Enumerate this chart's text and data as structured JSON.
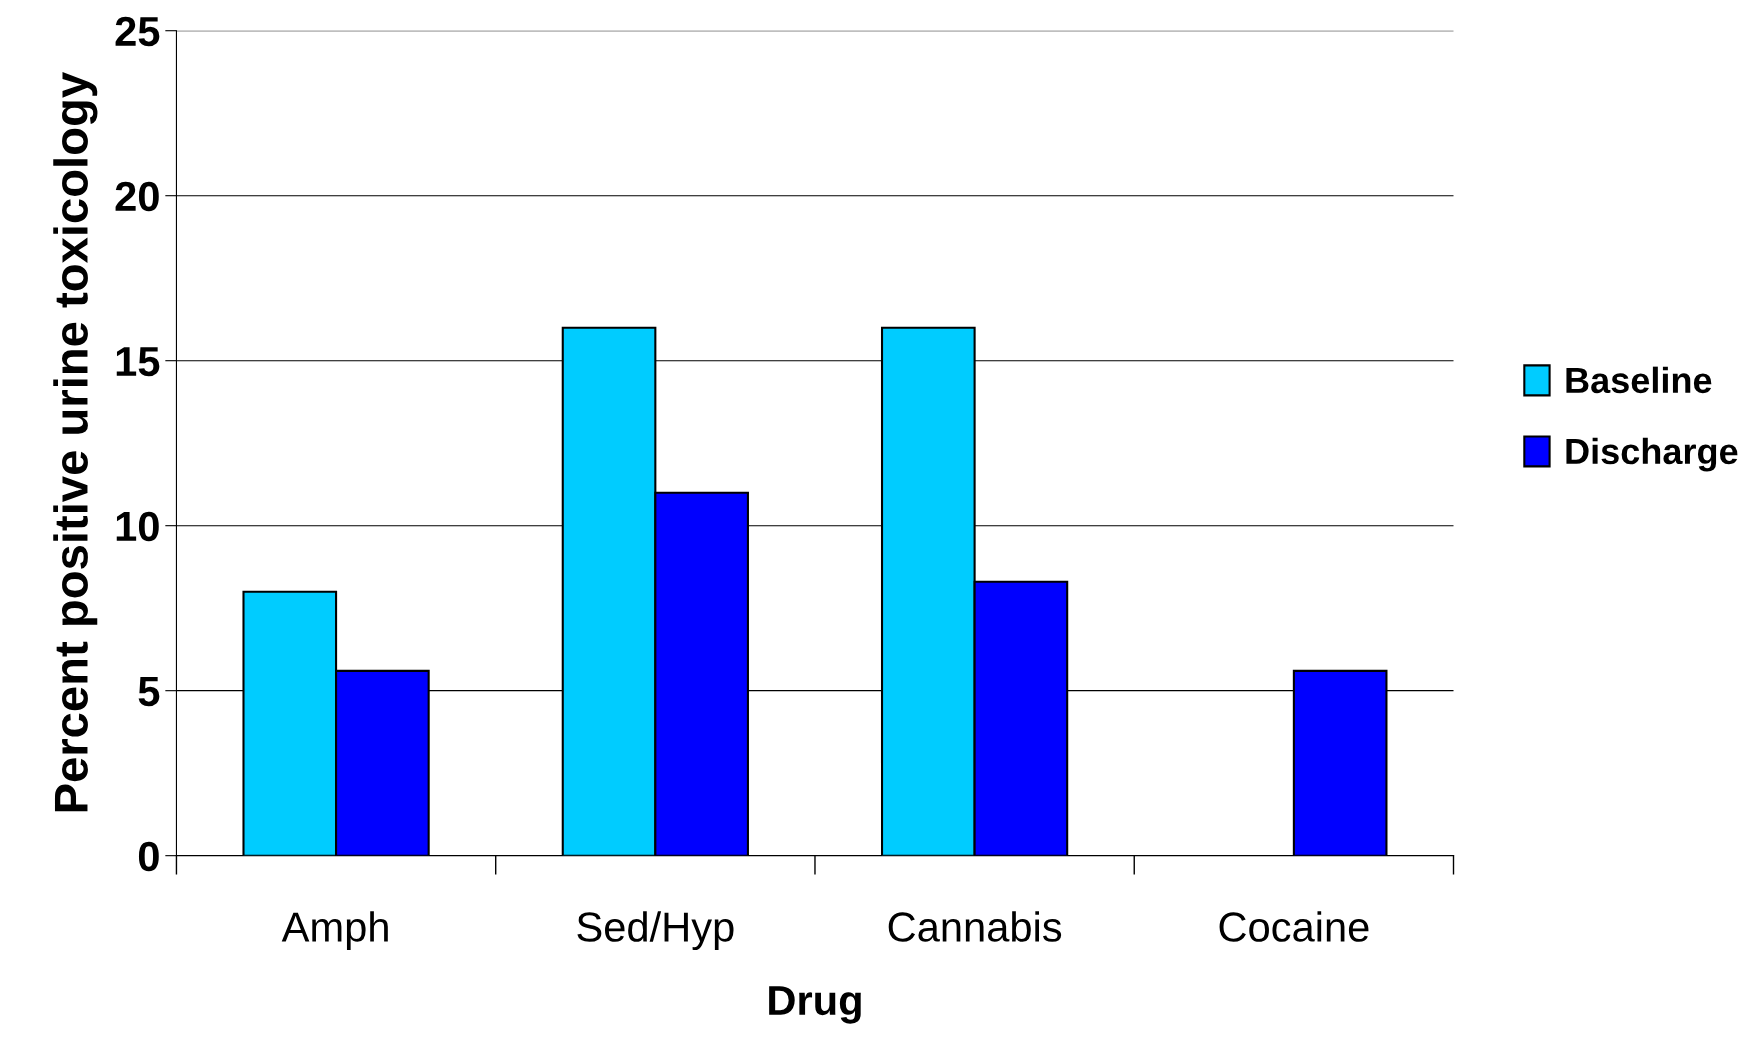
{
  "chart_data": {
    "type": "bar",
    "xlabel": "Drug",
    "ylabel": "Percent positive urine toxicology",
    "categories": [
      "Amph",
      "Sed/Hyp",
      "Cannabis",
      "Cocaine"
    ],
    "series": [
      {
        "name": "Baseline",
        "color": "#00ccff",
        "values": [
          8,
          16,
          16,
          0
        ]
      },
      {
        "name": "Discharge",
        "color": "#0000ff",
        "values": [
          5.6,
          11,
          8.3,
          5.6
        ]
      }
    ],
    "ylim": [
      0,
      25
    ],
    "yticks": [
      0,
      5,
      10,
      15,
      20,
      25
    ],
    "grid": "y",
    "legend": "right"
  }
}
